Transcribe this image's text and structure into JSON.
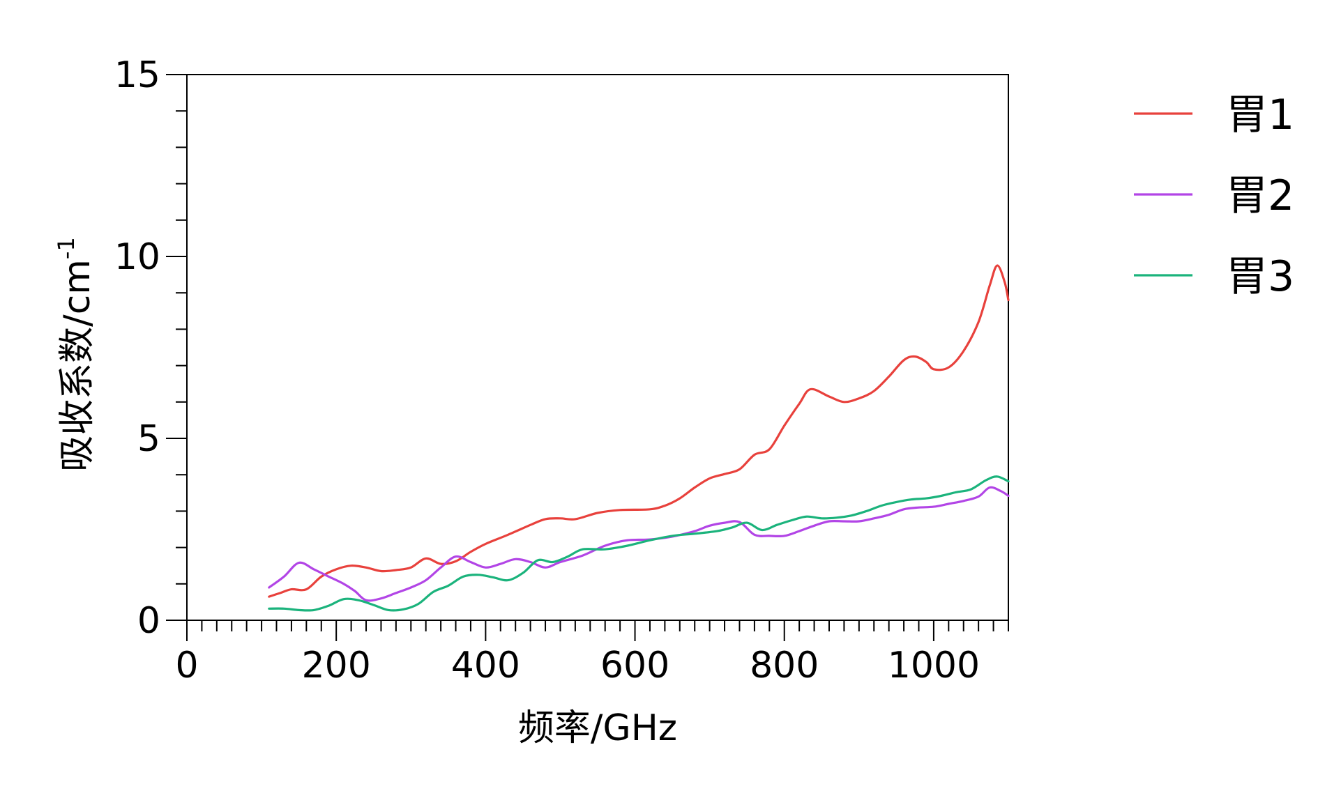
{
  "chart_data": {
    "type": "line",
    "title": "",
    "xlabel": "频率/GHz",
    "ylabel_main": "吸收系数/cm",
    "ylabel_sup": "-1",
    "xlim": [
      0,
      1100
    ],
    "ylim": [
      0,
      15
    ],
    "x_ticks": [
      0,
      200,
      400,
      600,
      800,
      1000
    ],
    "y_ticks": [
      0,
      5,
      10,
      15
    ],
    "x_tick_labels": [
      "0",
      "200",
      "400",
      "600",
      "800",
      "1000"
    ],
    "y_tick_labels": [
      "0",
      "5",
      "10",
      "15"
    ],
    "grid": false,
    "legend": "outside-right",
    "series": [
      {
        "name": "胃1",
        "color": "#e8413c",
        "points": [
          [
            110,
            0.65
          ],
          [
            125,
            0.75
          ],
          [
            140,
            0.85
          ],
          [
            160,
            0.85
          ],
          [
            180,
            1.2
          ],
          [
            200,
            1.4
          ],
          [
            220,
            1.5
          ],
          [
            240,
            1.45
          ],
          [
            260,
            1.35
          ],
          [
            280,
            1.38
          ],
          [
            300,
            1.45
          ],
          [
            320,
            1.7
          ],
          [
            340,
            1.55
          ],
          [
            360,
            1.62
          ],
          [
            380,
            1.88
          ],
          [
            400,
            2.1
          ],
          [
            430,
            2.35
          ],
          [
            460,
            2.62
          ],
          [
            480,
            2.78
          ],
          [
            500,
            2.8
          ],
          [
            520,
            2.78
          ],
          [
            550,
            2.95
          ],
          [
            580,
            3.03
          ],
          [
            620,
            3.05
          ],
          [
            640,
            3.15
          ],
          [
            660,
            3.35
          ],
          [
            680,
            3.65
          ],
          [
            700,
            3.9
          ],
          [
            720,
            4.02
          ],
          [
            740,
            4.15
          ],
          [
            760,
            4.55
          ],
          [
            780,
            4.7
          ],
          [
            800,
            5.35
          ],
          [
            820,
            5.95
          ],
          [
            835,
            6.35
          ],
          [
            860,
            6.15
          ],
          [
            880,
            6.0
          ],
          [
            900,
            6.1
          ],
          [
            920,
            6.3
          ],
          [
            940,
            6.7
          ],
          [
            960,
            7.15
          ],
          [
            975,
            7.25
          ],
          [
            990,
            7.1
          ],
          [
            1000,
            6.9
          ],
          [
            1020,
            6.95
          ],
          [
            1040,
            7.4
          ],
          [
            1060,
            8.2
          ],
          [
            1075,
            9.2
          ],
          [
            1085,
            9.75
          ],
          [
            1095,
            9.3
          ],
          [
            1100,
            8.8
          ]
        ]
      },
      {
        "name": "胃2",
        "color": "#b245e6",
        "points": [
          [
            110,
            0.9
          ],
          [
            130,
            1.2
          ],
          [
            150,
            1.58
          ],
          [
            170,
            1.4
          ],
          [
            190,
            1.2
          ],
          [
            210,
            1.0
          ],
          [
            225,
            0.8
          ],
          [
            240,
            0.55
          ],
          [
            260,
            0.6
          ],
          [
            280,
            0.75
          ],
          [
            300,
            0.9
          ],
          [
            320,
            1.1
          ],
          [
            340,
            1.45
          ],
          [
            360,
            1.75
          ],
          [
            380,
            1.6
          ],
          [
            400,
            1.45
          ],
          [
            420,
            1.55
          ],
          [
            440,
            1.68
          ],
          [
            460,
            1.6
          ],
          [
            480,
            1.45
          ],
          [
            500,
            1.6
          ],
          [
            530,
            1.78
          ],
          [
            560,
            2.05
          ],
          [
            590,
            2.2
          ],
          [
            620,
            2.22
          ],
          [
            650,
            2.3
          ],
          [
            680,
            2.45
          ],
          [
            700,
            2.6
          ],
          [
            720,
            2.68
          ],
          [
            740,
            2.7
          ],
          [
            760,
            2.35
          ],
          [
            780,
            2.32
          ],
          [
            800,
            2.32
          ],
          [
            820,
            2.45
          ],
          [
            840,
            2.6
          ],
          [
            860,
            2.72
          ],
          [
            880,
            2.72
          ],
          [
            900,
            2.72
          ],
          [
            920,
            2.8
          ],
          [
            940,
            2.9
          ],
          [
            960,
            3.05
          ],
          [
            980,
            3.1
          ],
          [
            1000,
            3.12
          ],
          [
            1020,
            3.2
          ],
          [
            1040,
            3.28
          ],
          [
            1060,
            3.4
          ],
          [
            1075,
            3.65
          ],
          [
            1090,
            3.55
          ],
          [
            1100,
            3.42
          ]
        ]
      },
      {
        "name": "胃3",
        "color": "#1bb37c",
        "points": [
          [
            110,
            0.32
          ],
          [
            130,
            0.32
          ],
          [
            150,
            0.28
          ],
          [
            170,
            0.28
          ],
          [
            190,
            0.4
          ],
          [
            210,
            0.58
          ],
          [
            230,
            0.55
          ],
          [
            250,
            0.42
          ],
          [
            270,
            0.28
          ],
          [
            290,
            0.3
          ],
          [
            310,
            0.45
          ],
          [
            330,
            0.78
          ],
          [
            350,
            0.95
          ],
          [
            370,
            1.2
          ],
          [
            390,
            1.25
          ],
          [
            410,
            1.18
          ],
          [
            430,
            1.1
          ],
          [
            450,
            1.3
          ],
          [
            470,
            1.65
          ],
          [
            490,
            1.6
          ],
          [
            510,
            1.75
          ],
          [
            530,
            1.95
          ],
          [
            560,
            1.95
          ],
          [
            590,
            2.05
          ],
          [
            620,
            2.2
          ],
          [
            650,
            2.32
          ],
          [
            680,
            2.38
          ],
          [
            710,
            2.45
          ],
          [
            730,
            2.55
          ],
          [
            750,
            2.68
          ],
          [
            770,
            2.48
          ],
          [
            790,
            2.62
          ],
          [
            810,
            2.75
          ],
          [
            830,
            2.85
          ],
          [
            850,
            2.8
          ],
          [
            870,
            2.82
          ],
          [
            890,
            2.88
          ],
          [
            910,
            3.0
          ],
          [
            930,
            3.15
          ],
          [
            950,
            3.25
          ],
          [
            970,
            3.32
          ],
          [
            990,
            3.35
          ],
          [
            1010,
            3.42
          ],
          [
            1030,
            3.52
          ],
          [
            1050,
            3.6
          ],
          [
            1070,
            3.85
          ],
          [
            1085,
            3.95
          ],
          [
            1100,
            3.82
          ]
        ]
      }
    ]
  }
}
